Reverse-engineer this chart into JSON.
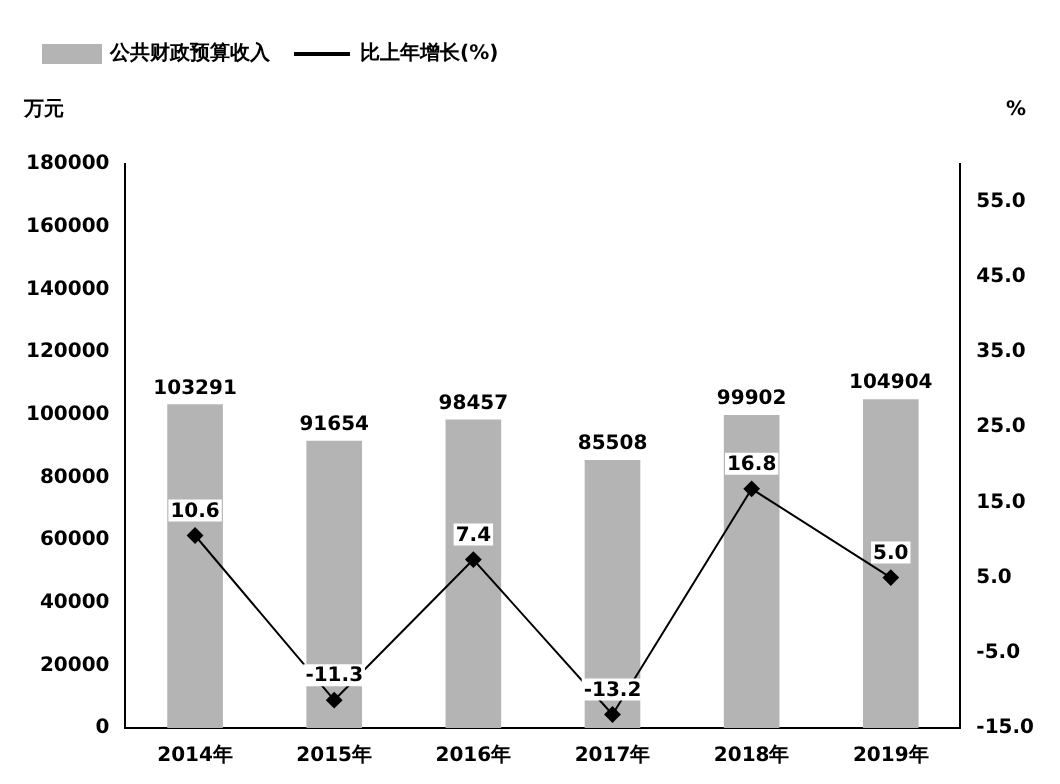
{
  "chart_data": {
    "type": "bar",
    "categories": [
      "2014年",
      "2015年",
      "2016年",
      "2017年",
      "2018年",
      "2019年"
    ],
    "ylabel": "万元",
    "y2label": "%",
    "series": [
      {
        "name": "公共财政预算收入",
        "color": "#b4b4b4",
        "values": [
          103291,
          91654,
          98457,
          85508,
          99902,
          104904
        ],
        "value_labels": [
          "103291",
          "91654",
          "98457",
          "85508",
          "99902",
          "104904"
        ]
      },
      {
        "name": "比上年增长(%)",
        "type": "line",
        "axis": "y2",
        "color": "#000000",
        "values": [
          10.6,
          -11.3,
          7.4,
          -13.2,
          16.8,
          5.0
        ],
        "value_labels": [
          "10.6",
          "-11.3",
          "7.4",
          "-13.2",
          "16.8",
          "5.0"
        ]
      }
    ],
    "ylim": [
      0,
      180000
    ],
    "yticks": [
      0,
      20000,
      40000,
      60000,
      80000,
      100000,
      120000,
      140000,
      160000,
      180000
    ],
    "y2lim": [
      -15,
      60
    ],
    "y2ticks": [
      {
        "value": -15,
        "label": "-15.0"
      },
      {
        "value": -5,
        "label": "-5.0"
      },
      {
        "value": 5,
        "label": "5.0"
      },
      {
        "value": 15,
        "label": "15.0"
      },
      {
        "value": 25,
        "label": "25.0"
      },
      {
        "value": 35,
        "label": "35.0"
      },
      {
        "value": 45,
        "label": "45.0"
      },
      {
        "value": 55,
        "label": "55.0"
      }
    ],
    "legend": "top",
    "grid": false,
    "marker": "diamond",
    "line_style": "solid"
  }
}
